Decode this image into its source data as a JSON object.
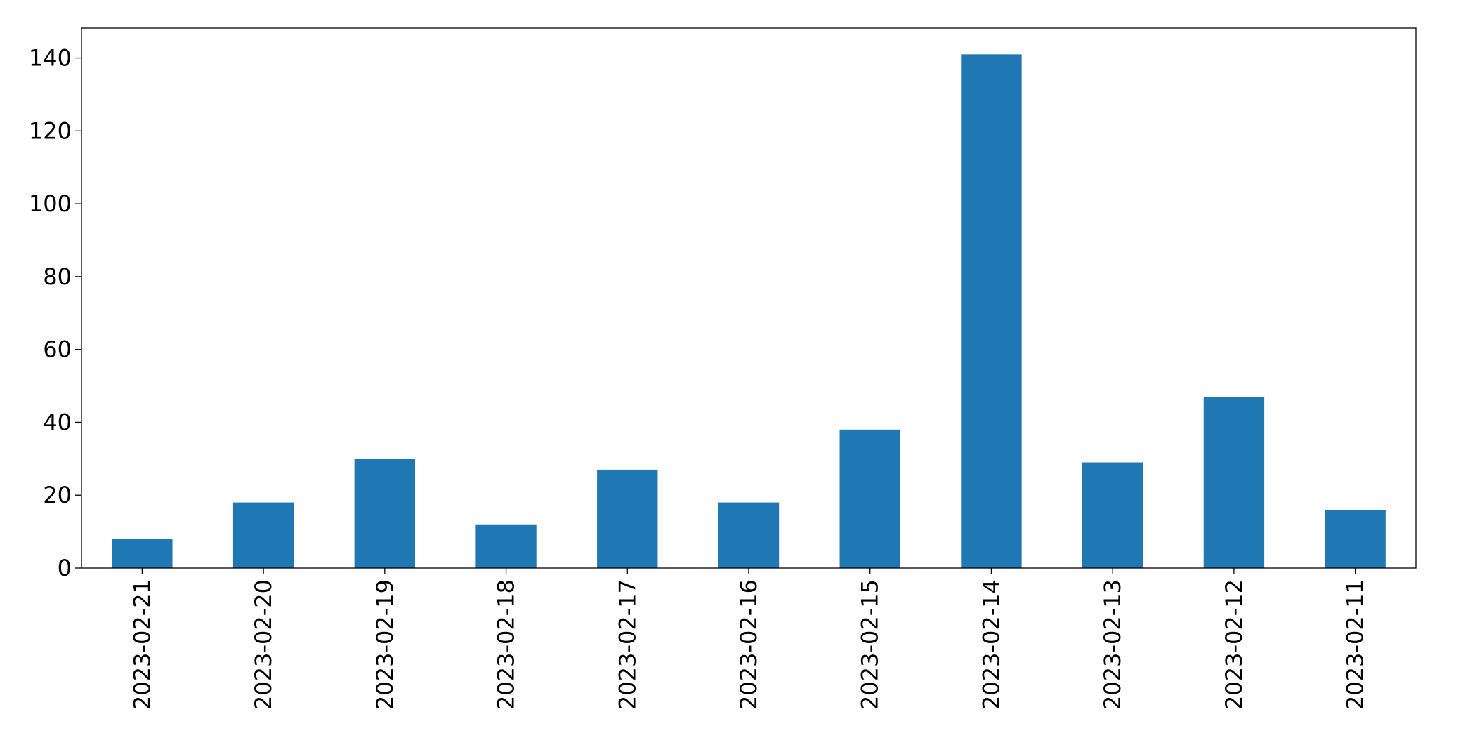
{
  "chart_data": {
    "type": "bar",
    "categories": [
      "2023-02-21",
      "2023-02-20",
      "2023-02-19",
      "2023-02-18",
      "2023-02-17",
      "2023-02-16",
      "2023-02-15",
      "2023-02-14",
      "2023-02-13",
      "2023-02-12",
      "2023-02-11"
    ],
    "values": [
      8,
      18,
      30,
      12,
      27,
      18,
      38,
      141,
      29,
      47,
      16
    ],
    "color": "#1f77b4",
    "ylim": [
      0,
      148.2
    ],
    "yticks": [
      0,
      20,
      40,
      60,
      80,
      100,
      120,
      140
    ],
    "grid": false
  }
}
